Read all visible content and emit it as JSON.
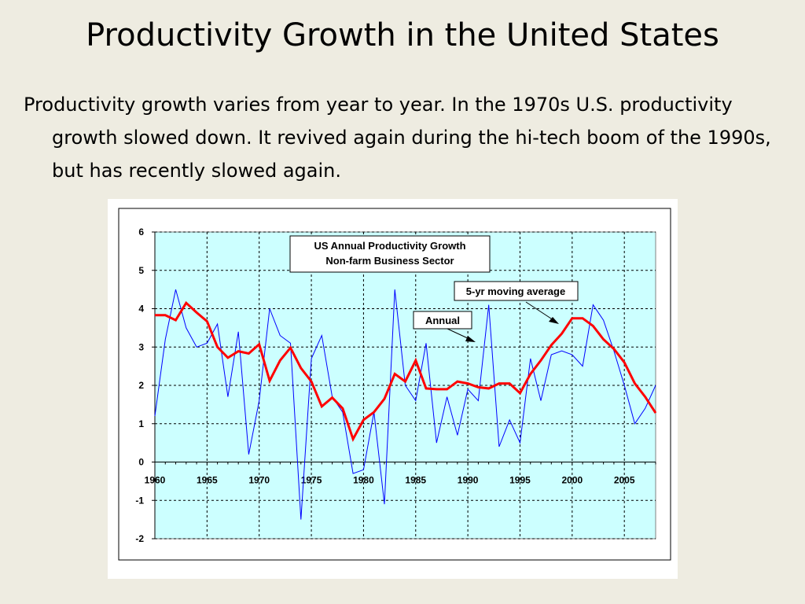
{
  "slide": {
    "title": "Productivity Growth in the United States",
    "bullet": "Productivity growth varies from year to year. In the 1970s U.S. productivity growth slowed down. It revived again during the hi-tech boom of the 1990s, but has recently slowed again."
  },
  "chart_data": {
    "type": "line",
    "title_lines": [
      "US Annual Productivity Growth",
      "Non-farm Business Sector"
    ],
    "xlabel": "",
    "ylabel": "",
    "xlim": [
      1960,
      2008
    ],
    "ylim": [
      -2,
      6
    ],
    "x_ticks": [
      1960,
      1965,
      1970,
      1975,
      1980,
      1985,
      1990,
      1995,
      2000,
      2005
    ],
    "y_ticks": [
      -2,
      -1,
      0,
      1,
      2,
      3,
      4,
      5,
      6
    ],
    "grid": true,
    "colors": {
      "plot_bg": "#ccffff",
      "annual": "#0000ff",
      "moving_avg": "#ff0000"
    },
    "annotations": [
      {
        "label": "5-yr moving average",
        "points_to": "moving_avg"
      },
      {
        "label": "Annual",
        "points_to": "annual"
      }
    ],
    "series": [
      {
        "name": "Annual",
        "x": [
          1960,
          1961,
          1962,
          1963,
          1964,
          1965,
          1966,
          1967,
          1968,
          1969,
          1970,
          1971,
          1972,
          1973,
          1974,
          1975,
          1976,
          1977,
          1978,
          1979,
          1980,
          1981,
          1982,
          1983,
          1984,
          1985,
          1986,
          1987,
          1988,
          1989,
          1990,
          1991,
          1992,
          1993,
          1994,
          1995,
          1996,
          1997,
          1998,
          1999,
          2000,
          2001,
          2002,
          2003,
          2004,
          2005,
          2006,
          2007,
          2008
        ],
        "values": [
          1.2,
          3.2,
          4.5,
          3.5,
          3.0,
          3.1,
          3.6,
          1.7,
          3.4,
          0.2,
          1.6,
          4.0,
          3.3,
          3.1,
          -1.5,
          2.7,
          3.3,
          1.7,
          1.3,
          -0.3,
          -0.2,
          1.3,
          -1.1,
          4.5,
          2.0,
          1.6,
          3.1,
          0.5,
          1.7,
          0.7,
          1.9,
          1.6,
          4.1,
          0.4,
          1.1,
          0.5,
          2.7,
          1.6,
          2.8,
          2.9,
          2.8,
          2.5,
          4.1,
          3.7,
          2.9,
          2.0,
          1.0,
          1.4,
          2.0
        ]
      },
      {
        "name": "5-yr moving average",
        "x": [
          1960,
          1961,
          1962,
          1963,
          1964,
          1965,
          1966,
          1967,
          1968,
          1969,
          1970,
          1971,
          1972,
          1973,
          1974,
          1975,
          1976,
          1977,
          1978,
          1979,
          1980,
          1981,
          1982,
          1983,
          1984,
          1985,
          1986,
          1987,
          1988,
          1989,
          1990,
          1991,
          1992,
          1993,
          1994,
          1995,
          1996,
          1997,
          1998,
          1999,
          2000,
          2001,
          2002,
          2003,
          2004,
          2005,
          2006,
          2007,
          2008
        ],
        "values": [
          3.83,
          3.83,
          3.7,
          4.15,
          3.9,
          3.67,
          3.0,
          2.72,
          2.89,
          2.83,
          3.07,
          2.12,
          2.65,
          2.98,
          2.45,
          2.1,
          1.45,
          1.68,
          1.4,
          0.6,
          1.1,
          1.3,
          1.65,
          2.3,
          2.1,
          2.65,
          1.92,
          1.9,
          1.9,
          2.1,
          2.05,
          1.95,
          1.92,
          2.05,
          2.05,
          1.8,
          2.3,
          2.65,
          3.05,
          3.35,
          3.75,
          3.75,
          3.55,
          3.2,
          2.95,
          2.6,
          2.05,
          1.7,
          1.28
        ]
      }
    ]
  }
}
